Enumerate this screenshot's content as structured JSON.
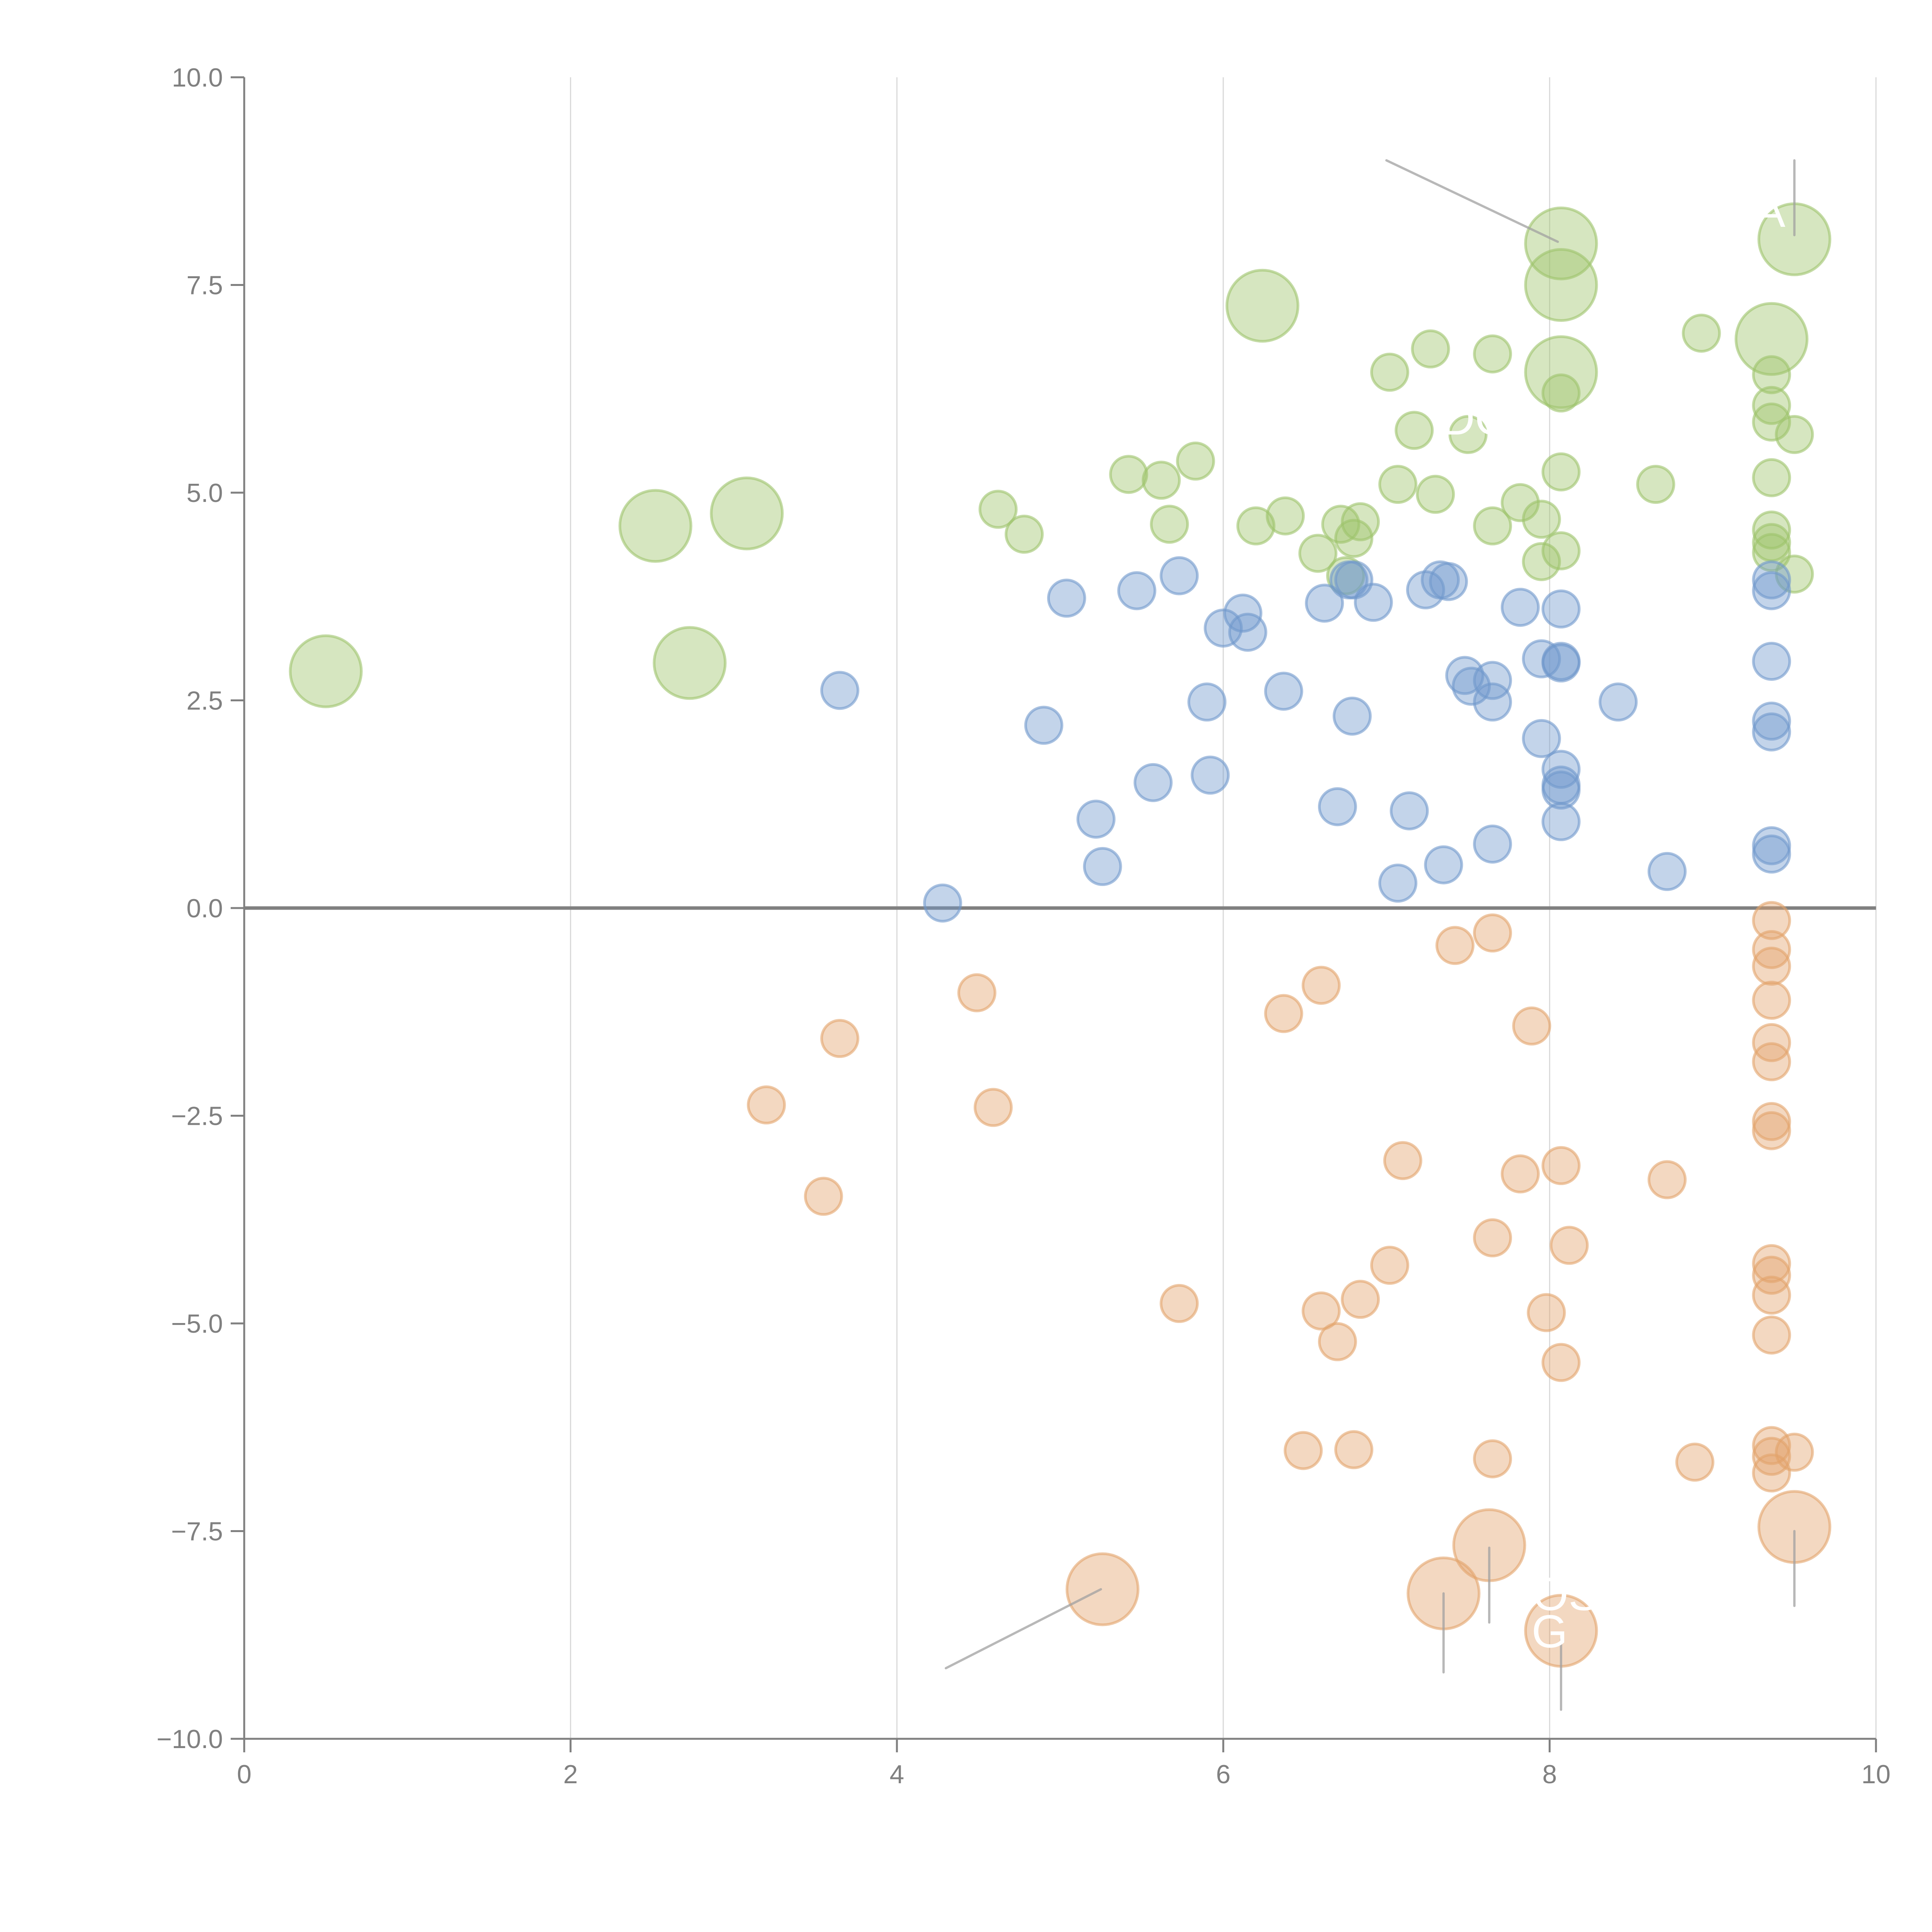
{
  "chart_data": {
    "type": "scatter",
    "title": "",
    "xlabel": "",
    "ylabel": "",
    "xlim": [
      0,
      10
    ],
    "ylim": [
      -10,
      10
    ],
    "x_ticks": [
      "0",
      "2",
      "4",
      "6",
      "8",
      "10"
    ],
    "y_ticks": [
      "10.0",
      "7.5",
      "5.0",
      "2.5",
      "0.0",
      "−2.5",
      "−5.0",
      "−7.5",
      "−10.0"
    ],
    "grid": "vertical",
    "zero_line": true,
    "legend": "none",
    "colors": {
      "green": "#9dc36a",
      "blue": "#6f98cc",
      "orange": "#e3a36b",
      "leader": "#a0a0a0"
    },
    "series": [
      {
        "name": "green",
        "points": [
          {
            "x": 0.5,
            "y": 2.85,
            "s": "large"
          },
          {
            "x": 2.52,
            "y": 4.6,
            "s": "large"
          },
          {
            "x": 3.08,
            "y": 4.75,
            "s": "large"
          },
          {
            "x": 2.73,
            "y": 2.95,
            "s": "large"
          },
          {
            "x": 6.24,
            "y": 7.25,
            "s": "large"
          },
          {
            "x": 8.07,
            "y": 8.0,
            "s": "large"
          },
          {
            "x": 8.07,
            "y": 7.5,
            "s": "large"
          },
          {
            "x": 8.07,
            "y": 6.45,
            "s": "large"
          },
          {
            "x": 9.5,
            "y": 8.05,
            "s": "large"
          },
          {
            "x": 9.36,
            "y": 6.85,
            "s": "large"
          },
          {
            "x": 4.62,
            "y": 4.8,
            "s": "small"
          },
          {
            "x": 4.78,
            "y": 4.5,
            "s": "small"
          },
          {
            "x": 5.42,
            "y": 5.22,
            "s": "small"
          },
          {
            "x": 5.62,
            "y": 5.15,
            "s": "small"
          },
          {
            "x": 5.83,
            "y": 5.38,
            "s": "small"
          },
          {
            "x": 5.67,
            "y": 4.62,
            "s": "small"
          },
          {
            "x": 6.2,
            "y": 4.6,
            "s": "small"
          },
          {
            "x": 6.38,
            "y": 4.72,
            "s": "small"
          },
          {
            "x": 6.58,
            "y": 4.27,
            "s": "small"
          },
          {
            "x": 6.72,
            "y": 4.62,
            "s": "small"
          },
          {
            "x": 6.8,
            "y": 4.45,
            "s": "small"
          },
          {
            "x": 6.84,
            "y": 4.65,
            "s": "small"
          },
          {
            "x": 6.75,
            "y": 4.0,
            "s": "small"
          },
          {
            "x": 7.02,
            "y": 6.45,
            "s": "small"
          },
          {
            "x": 7.27,
            "y": 6.73,
            "s": "small"
          },
          {
            "x": 7.17,
            "y": 5.75,
            "s": "small"
          },
          {
            "x": 7.07,
            "y": 5.1,
            "s": "small"
          },
          {
            "x": 7.3,
            "y": 4.98,
            "s": "small"
          },
          {
            "x": 7.5,
            "y": 5.7,
            "s": "small"
          },
          {
            "x": 7.65,
            "y": 6.67,
            "s": "small"
          },
          {
            "x": 7.65,
            "y": 4.6,
            "s": "small"
          },
          {
            "x": 7.82,
            "y": 4.88,
            "s": "small"
          },
          {
            "x": 7.95,
            "y": 4.68,
            "s": "small"
          },
          {
            "x": 7.95,
            "y": 4.17,
            "s": "small"
          },
          {
            "x": 8.07,
            "y": 4.3,
            "s": "small"
          },
          {
            "x": 8.07,
            "y": 5.25,
            "s": "small"
          },
          {
            "x": 8.07,
            "y": 6.2,
            "s": "small"
          },
          {
            "x": 8.65,
            "y": 5.1,
            "s": "small"
          },
          {
            "x": 8.93,
            "y": 6.92,
            "s": "small"
          },
          {
            "x": 9.36,
            "y": 6.42,
            "s": "small"
          },
          {
            "x": 9.36,
            "y": 6.05,
            "s": "small"
          },
          {
            "x": 9.36,
            "y": 5.85,
            "s": "small"
          },
          {
            "x": 9.5,
            "y": 5.7,
            "s": "small"
          },
          {
            "x": 9.36,
            "y": 5.18,
            "s": "small"
          },
          {
            "x": 9.36,
            "y": 4.55,
            "s": "small"
          },
          {
            "x": 9.36,
            "y": 4.4,
            "s": "small"
          },
          {
            "x": 9.36,
            "y": 4.28,
            "s": "small"
          },
          {
            "x": 9.5,
            "y": 4.02,
            "s": "small"
          }
        ]
      },
      {
        "name": "blue",
        "points": [
          {
            "x": 3.65,
            "y": 2.62
          },
          {
            "x": 4.28,
            "y": 0.06
          },
          {
            "x": 4.9,
            "y": 2.2
          },
          {
            "x": 5.04,
            "y": 3.73
          },
          {
            "x": 5.47,
            "y": 3.82
          },
          {
            "x": 5.73,
            "y": 4.0
          },
          {
            "x": 5.22,
            "y": 1.07
          },
          {
            "x": 5.26,
            "y": 0.5
          },
          {
            "x": 5.57,
            "y": 1.51
          },
          {
            "x": 5.9,
            "y": 2.48
          },
          {
            "x": 5.92,
            "y": 1.6
          },
          {
            "x": 6.0,
            "y": 3.37
          },
          {
            "x": 6.12,
            "y": 3.55
          },
          {
            "x": 6.15,
            "y": 3.32
          },
          {
            "x": 6.37,
            "y": 2.61
          },
          {
            "x": 6.62,
            "y": 3.67
          },
          {
            "x": 6.7,
            "y": 1.22
          },
          {
            "x": 6.77,
            "y": 3.95
          },
          {
            "x": 6.8,
            "y": 3.95
          },
          {
            "x": 6.79,
            "y": 2.31
          },
          {
            "x": 6.92,
            "y": 3.68
          },
          {
            "x": 7.07,
            "y": 0.3
          },
          {
            "x": 7.14,
            "y": 1.17
          },
          {
            "x": 7.24,
            "y": 3.83
          },
          {
            "x": 7.33,
            "y": 3.95
          },
          {
            "x": 7.38,
            "y": 3.93
          },
          {
            "x": 7.35,
            "y": 0.52
          },
          {
            "x": 7.48,
            "y": 2.8
          },
          {
            "x": 7.52,
            "y": 2.67
          },
          {
            "x": 7.65,
            "y": 2.74
          },
          {
            "x": 7.65,
            "y": 2.48
          },
          {
            "x": 7.65,
            "y": 0.77
          },
          {
            "x": 7.82,
            "y": 3.62
          },
          {
            "x": 7.95,
            "y": 3.0
          },
          {
            "x": 7.95,
            "y": 2.04
          },
          {
            "x": 8.07,
            "y": 3.6
          },
          {
            "x": 8.07,
            "y": 2.97
          },
          {
            "x": 8.07,
            "y": 2.95
          },
          {
            "x": 8.07,
            "y": 1.67
          },
          {
            "x": 8.07,
            "y": 1.48
          },
          {
            "x": 8.07,
            "y": 1.42
          },
          {
            "x": 8.07,
            "y": 1.04
          },
          {
            "x": 8.42,
            "y": 2.48
          },
          {
            "x": 8.72,
            "y": 0.44
          },
          {
            "x": 9.36,
            "y": 3.82
          },
          {
            "x": 9.36,
            "y": 3.95
          },
          {
            "x": 9.36,
            "y": 2.97
          },
          {
            "x": 9.36,
            "y": 2.25
          },
          {
            "x": 9.36,
            "y": 2.12
          },
          {
            "x": 9.36,
            "y": 0.75
          },
          {
            "x": 9.36,
            "y": 0.65
          }
        ]
      },
      {
        "name": "orange",
        "points": [
          {
            "x": 3.2,
            "y": -2.37,
            "s": "small"
          },
          {
            "x": 3.55,
            "y": -3.47,
            "s": "small"
          },
          {
            "x": 3.65,
            "y": -1.57,
            "s": "small"
          },
          {
            "x": 4.49,
            "y": -1.02,
            "s": "small"
          },
          {
            "x": 4.59,
            "y": -2.4,
            "s": "small"
          },
          {
            "x": 5.73,
            "y": -4.76,
            "s": "small"
          },
          {
            "x": 6.37,
            "y": -1.27,
            "s": "small"
          },
          {
            "x": 6.6,
            "y": -0.93,
            "s": "small"
          },
          {
            "x": 6.49,
            "y": -6.53,
            "s": "small"
          },
          {
            "x": 6.6,
            "y": -4.85,
            "s": "small"
          },
          {
            "x": 6.7,
            "y": -5.22,
            "s": "small"
          },
          {
            "x": 6.8,
            "y": -6.52,
            "s": "small"
          },
          {
            "x": 6.84,
            "y": -4.71,
            "s": "small"
          },
          {
            "x": 7.02,
            "y": -4.3,
            "s": "small"
          },
          {
            "x": 7.1,
            "y": -3.04,
            "s": "small"
          },
          {
            "x": 7.42,
            "y": -0.45,
            "s": "small"
          },
          {
            "x": 7.65,
            "y": -0.3,
            "s": "small"
          },
          {
            "x": 7.65,
            "y": -3.97,
            "s": "small"
          },
          {
            "x": 7.65,
            "y": -6.63,
            "s": "small"
          },
          {
            "x": 7.82,
            "y": -3.2,
            "s": "small"
          },
          {
            "x": 7.89,
            "y": -1.42,
            "s": "small"
          },
          {
            "x": 7.98,
            "y": -4.87,
            "s": "small"
          },
          {
            "x": 8.07,
            "y": -3.1,
            "s": "small"
          },
          {
            "x": 8.07,
            "y": -5.47,
            "s": "small"
          },
          {
            "x": 8.12,
            "y": -4.06,
            "s": "small"
          },
          {
            "x": 8.72,
            "y": -3.27,
            "s": "small"
          },
          {
            "x": 8.89,
            "y": -6.67,
            "s": "small"
          },
          {
            "x": 9.36,
            "y": -0.15,
            "s": "small"
          },
          {
            "x": 9.36,
            "y": -0.5,
            "s": "small"
          },
          {
            "x": 9.36,
            "y": -0.7,
            "s": "small"
          },
          {
            "x": 9.36,
            "y": -1.11,
            "s": "small"
          },
          {
            "x": 9.36,
            "y": -1.62,
            "s": "small"
          },
          {
            "x": 9.36,
            "y": -1.85,
            "s": "small"
          },
          {
            "x": 9.36,
            "y": -2.57,
            "s": "small"
          },
          {
            "x": 9.36,
            "y": -2.68,
            "s": "small"
          },
          {
            "x": 9.36,
            "y": -4.28,
            "s": "small"
          },
          {
            "x": 9.36,
            "y": -4.42,
            "s": "small"
          },
          {
            "x": 9.36,
            "y": -4.66,
            "s": "small"
          },
          {
            "x": 9.36,
            "y": -5.14,
            "s": "small"
          },
          {
            "x": 9.36,
            "y": -6.47,
            "s": "small"
          },
          {
            "x": 9.36,
            "y": -6.6,
            "s": "small"
          },
          {
            "x": 9.36,
            "y": -6.8,
            "s": "small"
          },
          {
            "x": 9.5,
            "y": -6.55,
            "s": "small"
          },
          {
            "x": 5.26,
            "y": -8.2,
            "s": "large"
          },
          {
            "x": 7.35,
            "y": -8.25,
            "s": "large"
          },
          {
            "x": 7.63,
            "y": -7.67,
            "s": "large"
          },
          {
            "x": 8.07,
            "y": -8.7,
            "s": "large"
          },
          {
            "x": 9.5,
            "y": -7.45,
            "s": "large"
          }
        ]
      }
    ],
    "annotations": [
      {
        "text": "A",
        "x": 9.35,
        "y": 8.2
      },
      {
        "text": "DO",
        "x": 7.55,
        "y": 5.7
      },
      {
        "text": "OS",
        "x": 8.1,
        "y": -8.45
      },
      {
        "text": "G",
        "x": 8.0,
        "y": -8.9
      }
    ],
    "leader_lines": [
      {
        "from": [
          7.0,
          9.0
        ],
        "to": [
          8.05,
          8.02
        ]
      },
      {
        "from": [
          9.5,
          9.0
        ],
        "to": [
          9.5,
          8.1
        ]
      },
      {
        "from": [
          4.3,
          -9.15
        ],
        "to": [
          5.25,
          -8.2
        ]
      },
      {
        "from": [
          7.35,
          -9.2
        ],
        "to": [
          7.35,
          -8.25
        ]
      },
      {
        "from": [
          7.63,
          -8.6
        ],
        "to": [
          7.63,
          -7.7
        ]
      },
      {
        "from": [
          8.07,
          -9.65
        ],
        "to": [
          8.07,
          -8.8
        ]
      },
      {
        "from": [
          9.5,
          -8.4
        ],
        "to": [
          9.5,
          -7.5
        ]
      }
    ]
  }
}
